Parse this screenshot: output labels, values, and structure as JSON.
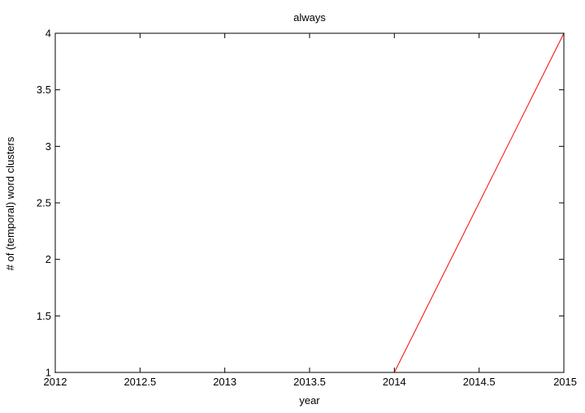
{
  "chart_data": {
    "type": "line",
    "title": "always",
    "xlabel": "year",
    "ylabel": "# of (temporal) word clusters",
    "xlim": [
      2012,
      2015
    ],
    "ylim": [
      1,
      4
    ],
    "x_ticks": [
      2012,
      2012.5,
      2013,
      2013.5,
      2014,
      2014.5,
      2015
    ],
    "x_tick_labels": [
      "2012",
      "2012.5",
      "2013",
      "2013.5",
      "2014",
      "2014.5",
      "2015"
    ],
    "y_ticks": [
      1,
      1.5,
      2,
      2.5,
      3,
      3.5,
      4
    ],
    "y_tick_labels": [
      "1",
      "1.5",
      "2",
      "2.5",
      "3",
      "3.5",
      "4"
    ],
    "grid": false,
    "legend": "none",
    "series": [
      {
        "color": "#ff0000",
        "x": [
          2012,
          2013,
          2014,
          2015
        ],
        "y": [
          1,
          1,
          1,
          4
        ]
      }
    ]
  }
}
